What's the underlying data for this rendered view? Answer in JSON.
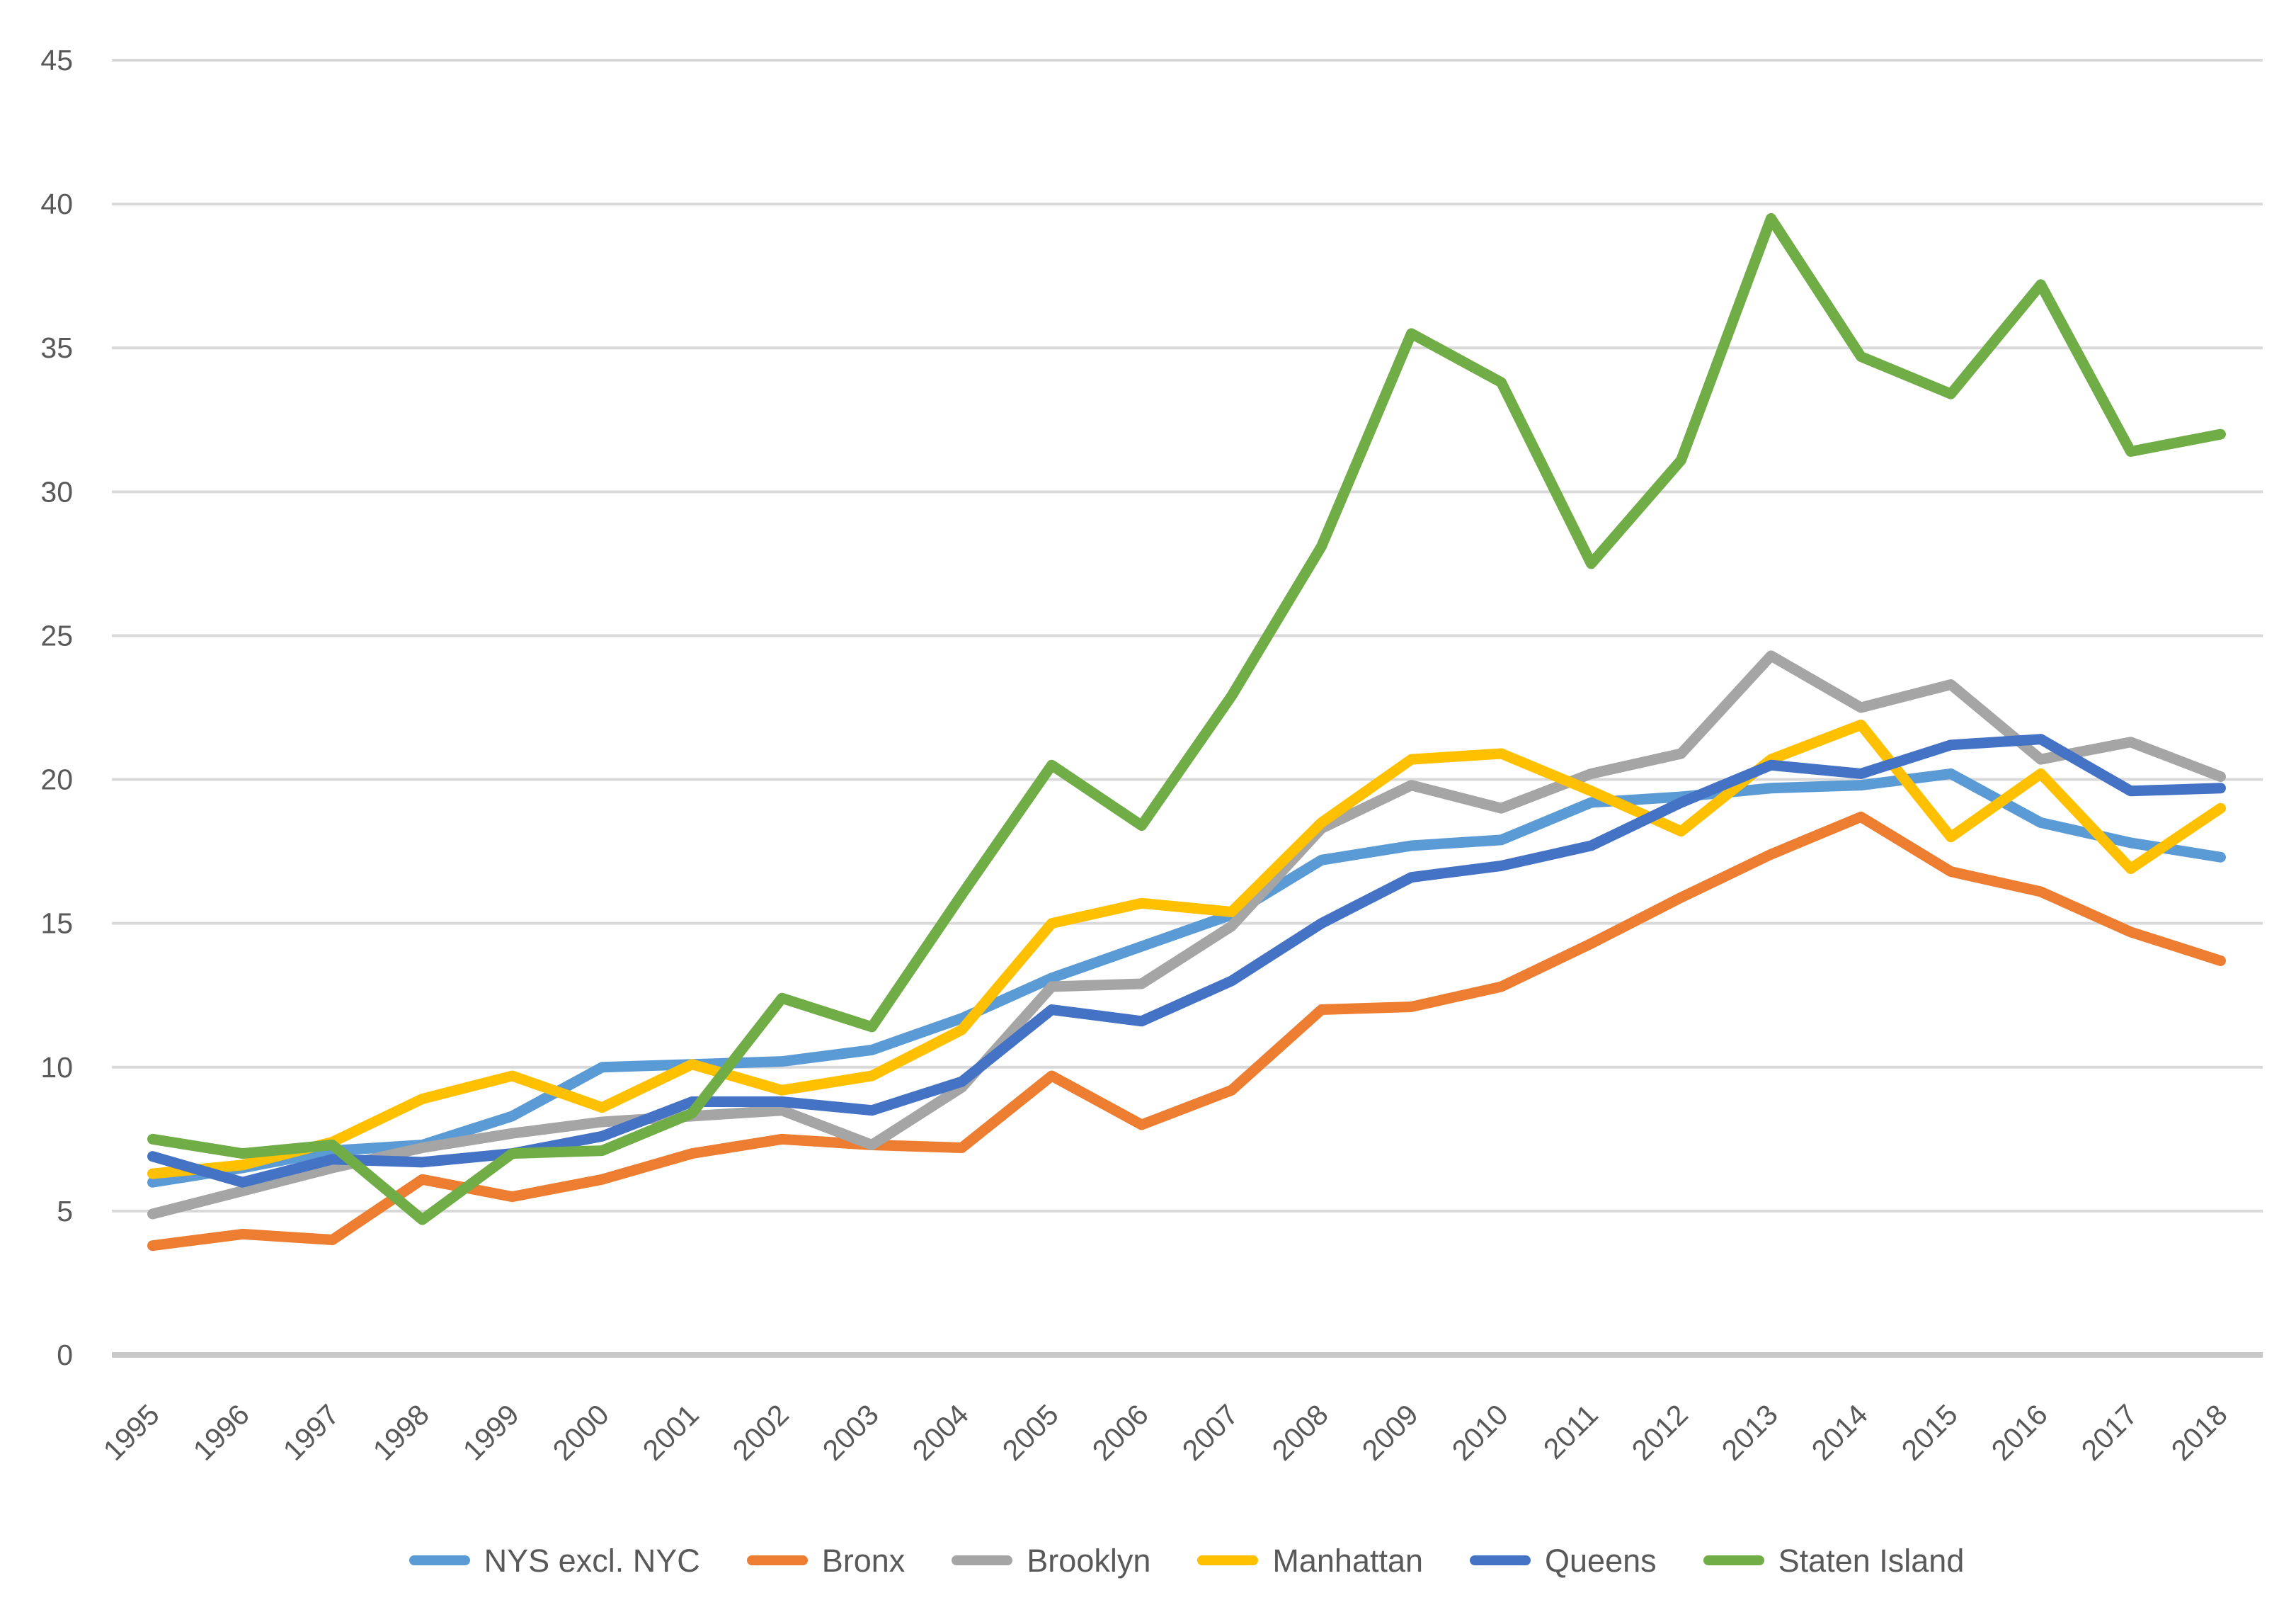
{
  "chart_data": {
    "type": "line",
    "title": "",
    "xlabel": "",
    "ylabel": "",
    "categories": [
      "1995",
      "1996",
      "1997",
      "1998",
      "1999",
      "2000",
      "2001",
      "2002",
      "2003",
      "2004",
      "2005",
      "2006",
      "2007",
      "2008",
      "2009",
      "2010",
      "2011",
      "2012",
      "2013",
      "2014",
      "2015",
      "2016",
      "2017",
      "2018"
    ],
    "series": [
      {
        "name": "NYS excl. NYC",
        "color": "#5B9BD5",
        "values": [
          6.0,
          6.5,
          7.1,
          7.3,
          8.3,
          10.0,
          10.1,
          10.2,
          10.6,
          11.7,
          13.1,
          14.2,
          15.3,
          17.2,
          17.7,
          17.9,
          19.2,
          19.4,
          19.7,
          19.8,
          20.2,
          18.5,
          17.8,
          17.3
        ]
      },
      {
        "name": "Bronx",
        "color": "#ED7D31",
        "values": [
          3.8,
          4.2,
          4.0,
          6.1,
          5.5,
          6.1,
          7.0,
          7.5,
          7.3,
          7.2,
          9.7,
          8.0,
          9.2,
          12.0,
          12.1,
          12.8,
          14.3,
          15.9,
          17.4,
          18.7,
          16.8,
          16.1,
          14.7,
          13.7
        ]
      },
      {
        "name": "Brooklyn",
        "color": "#A5A5A5",
        "values": [
          4.9,
          5.7,
          6.5,
          7.2,
          7.7,
          8.1,
          8.3,
          8.5,
          7.3,
          9.3,
          12.8,
          12.9,
          14.9,
          18.3,
          19.8,
          19.0,
          20.2,
          20.9,
          24.3,
          22.5,
          23.3,
          20.7,
          21.3,
          20.1
        ]
      },
      {
        "name": "Manhattan",
        "color": "#FFC000",
        "values": [
          6.3,
          6.6,
          7.4,
          8.9,
          9.7,
          8.6,
          10.1,
          9.2,
          9.7,
          11.3,
          15.0,
          15.7,
          15.4,
          18.5,
          20.7,
          20.9,
          19.6,
          18.2,
          20.7,
          21.9,
          18.0,
          20.2,
          16.9,
          19.0
        ]
      },
      {
        "name": "Queens",
        "color": "#4472C4",
        "values": [
          6.9,
          6.0,
          6.8,
          6.7,
          7.0,
          7.6,
          8.8,
          8.8,
          8.5,
          9.5,
          12.0,
          11.6,
          13.0,
          15.0,
          16.6,
          17.0,
          17.7,
          19.2,
          20.5,
          20.2,
          21.2,
          21.4,
          19.6,
          19.7
        ]
      },
      {
        "name": "Staten Island",
        "color": "#70AD47",
        "values": [
          7.5,
          7.0,
          7.3,
          4.7,
          7.0,
          7.1,
          8.4,
          12.4,
          11.4,
          16.0,
          20.5,
          18.4,
          22.9,
          28.1,
          35.5,
          33.8,
          27.5,
          31.1,
          39.5,
          34.7,
          33.4,
          37.2,
          31.4,
          32.0
        ]
      }
    ],
    "ylim": [
      0,
      45
    ],
    "ytick_step": 5,
    "ytick_labels": [
      "0",
      "5",
      "10",
      "15",
      "20",
      "25",
      "30",
      "35",
      "40",
      "45"
    ],
    "grid": true,
    "legend_position": "bottom",
    "x_label_rotation_deg": -45,
    "styles": {
      "grid_color": "#D9D9D9",
      "axis_color": "#C9C9C9",
      "tick_label_color": "#595959",
      "legend_text_color": "#595959",
      "background": "#FFFFFF",
      "line_width": 15
    }
  }
}
